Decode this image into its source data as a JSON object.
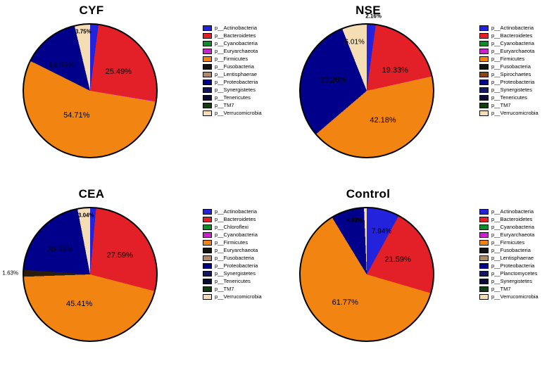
{
  "figure": {
    "background": "#ffffff"
  },
  "chart_data": [
    {
      "id": "CYF",
      "type": "pie",
      "title": "CYF",
      "legend_position": "right",
      "slices": [
        {
          "name": "p__Actinobacteria",
          "value": 2.01,
          "color": "#2323dd",
          "pct_label": ""
        },
        {
          "name": "p__Bacteroidetes",
          "value": 25.49,
          "color": "#e32028",
          "pct_label": "25.49%"
        },
        {
          "name": "p__Euryarchaeota",
          "value": 0.15,
          "color": "#cc22cc",
          "pct_label": ""
        },
        {
          "name": "p__Firmicutes",
          "value": 54.71,
          "color": "#f28511",
          "pct_label": "54.71%"
        },
        {
          "name": "p__Proteobacteria",
          "value": 13.89,
          "color": "#00008b",
          "pct_label": "13.89%"
        },
        {
          "name": "p__Verrucomicrobia",
          "value": 3.75,
          "color": "#f5deb3",
          "pct_label": "3.75%"
        }
      ],
      "legend": [
        {
          "label": "p__Actinobacteria",
          "color": "#2323dd"
        },
        {
          "label": "p__Bacteroidetes",
          "color": "#e32028"
        },
        {
          "label": "p__Cyanobacteria",
          "color": "#0e8c2a"
        },
        {
          "label": "p__Euryarchaeota",
          "color": "#cc22cc"
        },
        {
          "label": "p__Firmicutes",
          "color": "#f28511"
        },
        {
          "label": "p__Fusobacteria",
          "color": "#141414"
        },
        {
          "label": "p__Lentisphaerae",
          "color": "#b08968"
        },
        {
          "label": "p__Proteobacteria",
          "color": "#00008b"
        },
        {
          "label": "p__Synergistetes",
          "color": "#16165e"
        },
        {
          "label": "p__Tenericutes",
          "color": "#0a0a32"
        },
        {
          "label": "p__TM7",
          "color": "#123d12"
        },
        {
          "label": "p__Verrucomicrobia",
          "color": "#f5deb3"
        }
      ]
    },
    {
      "id": "NSE",
      "type": "pie",
      "title": "NSE",
      "legend_position": "right",
      "slices": [
        {
          "name": "p__Actinobacteria",
          "value": 2.16,
          "color": "#2323dd",
          "pct_label": "2.16%"
        },
        {
          "name": "p__Bacteroidetes",
          "value": 19.33,
          "color": "#e32028",
          "pct_label": "19.33%"
        },
        {
          "name": "p__Euryarchaeota",
          "value": 0.06,
          "color": "#cc22cc",
          "pct_label": ""
        },
        {
          "name": "p__Firmicutes",
          "value": 42.18,
          "color": "#f28511",
          "pct_label": "42.18%"
        },
        {
          "name": "p__Proteobacteria",
          "value": 30.26,
          "color": "#00008b",
          "pct_label": "30.26%"
        },
        {
          "name": "p__Verrucomicrobia",
          "value": 6.01,
          "color": "#f5deb3",
          "pct_label": "6.01%"
        }
      ],
      "legend": [
        {
          "label": "p__Actinobacteria",
          "color": "#2323dd"
        },
        {
          "label": "p__Bacteroidetes",
          "color": "#e32028"
        },
        {
          "label": "p__Cyanobacteria",
          "color": "#0e8c2a"
        },
        {
          "label": "p__Euryarchaeota",
          "color": "#cc22cc"
        },
        {
          "label": "p__Firmicutes",
          "color": "#f28511"
        },
        {
          "label": "p__Fusobacteria",
          "color": "#141414"
        },
        {
          "label": "p__Spirochaetes",
          "color": "#8b4513"
        },
        {
          "label": "p__Proteobacteria",
          "color": "#00008b"
        },
        {
          "label": "p__Synergistetes",
          "color": "#16165e"
        },
        {
          "label": "p__Tenericutes",
          "color": "#0a0a32"
        },
        {
          "label": "p__TM7",
          "color": "#123d12"
        },
        {
          "label": "p__Verrucomicrobia",
          "color": "#f5deb3"
        }
      ]
    },
    {
      "id": "CEA",
      "type": "pie",
      "title": "CEA",
      "legend_position": "right",
      "slices": [
        {
          "name": "p__Actinobacteria",
          "value": 1.45,
          "color": "#2323dd",
          "pct_label": ""
        },
        {
          "name": "p__Bacteroidetes",
          "value": 27.59,
          "color": "#e32028",
          "pct_label": "27.59%"
        },
        {
          "name": "p__Firmicutes",
          "value": 45.41,
          "color": "#f28511",
          "pct_label": "45.41%"
        },
        {
          "name": "p__Fusobacteria",
          "value": 1.63,
          "color": "#2b1d0e",
          "pct_label": "1.63%"
        },
        {
          "name": "p__Proteobacteria",
          "value": 20.88,
          "color": "#00008b",
          "pct_label": "20.88%"
        },
        {
          "name": "p__Verrucomicrobia",
          "value": 3.04,
          "color": "#f5deb3",
          "pct_label": "3.04%"
        }
      ],
      "legend": [
        {
          "label": "p__Actinobacteria",
          "color": "#2323dd"
        },
        {
          "label": "p__Bacteroidetes",
          "color": "#e32028"
        },
        {
          "label": "p__Chloroflexi",
          "color": "#0e8c2a"
        },
        {
          "label": "p__Cyanobacteria",
          "color": "#cc22cc"
        },
        {
          "label": "p__Firmicutes",
          "color": "#f28511"
        },
        {
          "label": "p__Euryarchaeota",
          "color": "#141414"
        },
        {
          "label": "p__Fusobacteria",
          "color": "#b08968"
        },
        {
          "label": "p__Proteobacteria",
          "color": "#00008b"
        },
        {
          "label": "p__Synergistetes",
          "color": "#16165e"
        },
        {
          "label": "p__Tenericutes",
          "color": "#0a0a32"
        },
        {
          "label": "p__TM7",
          "color": "#123d12"
        },
        {
          "label": "p__Verrucomicrobia",
          "color": "#f5deb3"
        }
      ]
    },
    {
      "id": "Control",
      "type": "pie",
      "title": "Control",
      "legend_position": "right",
      "slices": [
        {
          "name": "p__Actinobacteria",
          "value": 7.94,
          "color": "#2323dd",
          "pct_label": "7.94%"
        },
        {
          "name": "p__Bacteroidetes",
          "value": 21.59,
          "color": "#e32028",
          "pct_label": "21.59%"
        },
        {
          "name": "p__Firmicutes",
          "value": 61.77,
          "color": "#f28511",
          "pct_label": "61.77%"
        },
        {
          "name": "p__Proteobacteria",
          "value": 8.03,
          "color": "#00008b",
          "pct_label": "8.03%"
        },
        {
          "name": "p__Verrucomicrobia",
          "value": 0.67,
          "color": "#f5deb3",
          "pct_label": ""
        }
      ],
      "legend": [
        {
          "label": "p__Actinobacteria",
          "color": "#2323dd"
        },
        {
          "label": "p__Bacteroidetes",
          "color": "#e32028"
        },
        {
          "label": "p__Cyanobacteria",
          "color": "#0e8c2a"
        },
        {
          "label": "p__Euryarchaeota",
          "color": "#cc22cc"
        },
        {
          "label": "p__Firmicutes",
          "color": "#f28511"
        },
        {
          "label": "p__Fusobacteria",
          "color": "#141414"
        },
        {
          "label": "p__Lentisphaerae",
          "color": "#b08968"
        },
        {
          "label": "p__Proteobacteria",
          "color": "#00008b"
        },
        {
          "label": "p__Planctomycetes",
          "color": "#16165e"
        },
        {
          "label": "p__Synergistetes",
          "color": "#0a0a32"
        },
        {
          "label": "p__TM7",
          "color": "#123d12"
        },
        {
          "label": "p__Verrucomicrobia",
          "color": "#f5deb3"
        }
      ]
    }
  ]
}
